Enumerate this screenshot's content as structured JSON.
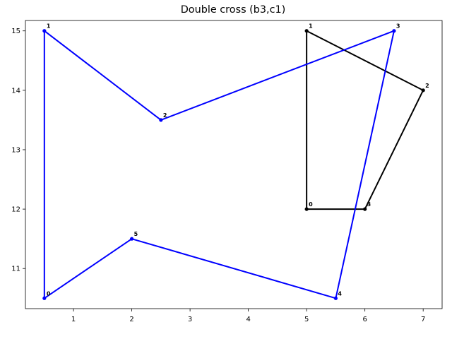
{
  "chart_data": {
    "type": "line",
    "title": "Double cross (b3,c1)",
    "xlabel": "",
    "ylabel": "",
    "xlim": [
      0.175,
      7.325
    ],
    "ylim": [
      10.325,
      15.175
    ],
    "x_ticks": [
      1,
      2,
      3,
      4,
      5,
      6,
      7
    ],
    "y_ticks": [
      11,
      12,
      13,
      14,
      15
    ],
    "grid": false,
    "series": [
      {
        "color": "#000000",
        "closed": true,
        "points": [
          {
            "label": "0",
            "x": 5.0,
            "y": 12.0
          },
          {
            "label": "1",
            "x": 5.0,
            "y": 15.0
          },
          {
            "label": "2",
            "x": 7.0,
            "y": 14.0
          },
          {
            "label": "3",
            "x": 6.0,
            "y": 12.0
          }
        ]
      },
      {
        "color": "#0000ff",
        "closed": true,
        "points": [
          {
            "label": "0",
            "x": 0.5,
            "y": 10.5
          },
          {
            "label": "1",
            "x": 0.5,
            "y": 15.0
          },
          {
            "label": "2",
            "x": 2.5,
            "y": 13.5
          },
          {
            "label": "3",
            "x": 6.5,
            "y": 15.0
          },
          {
            "label": "4",
            "x": 5.5,
            "y": 10.5
          },
          {
            "label": "5",
            "x": 2.0,
            "y": 11.5
          }
        ]
      }
    ]
  }
}
